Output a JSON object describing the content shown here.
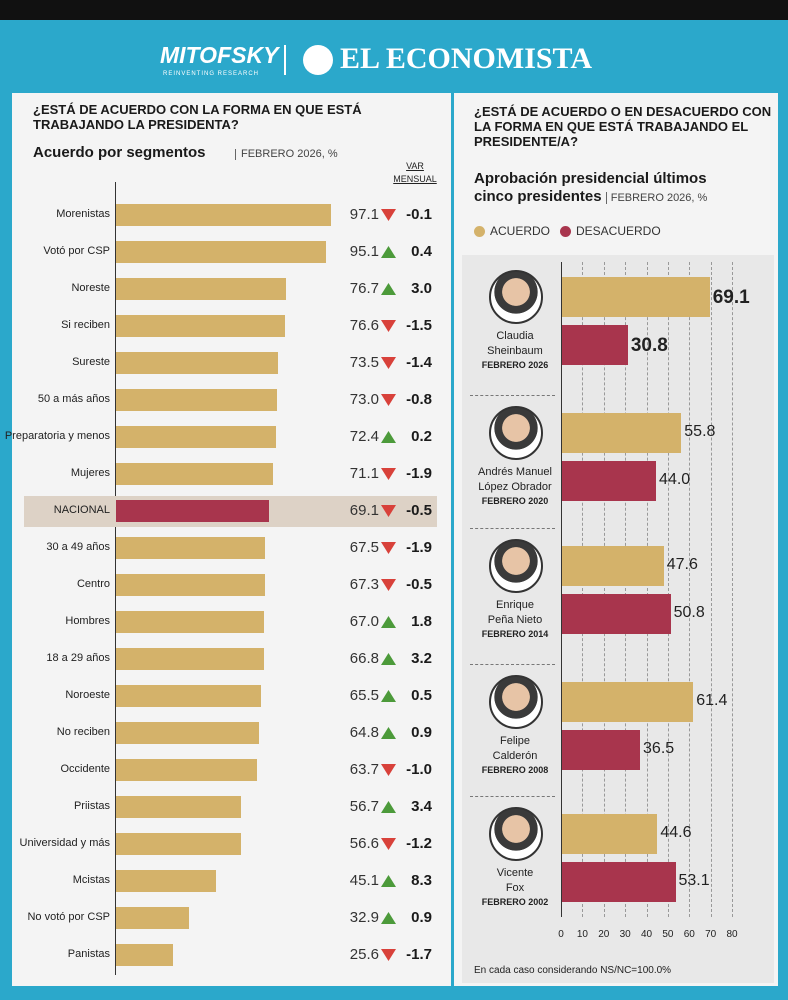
{
  "header": {
    "brand": "MITOFSKY",
    "tagline": "REINVENTING RESEARCH",
    "publisher": "EL ECONOMISTA"
  },
  "chart_data": [
    {
      "type": "bar",
      "orientation": "horizontal",
      "title": "¿ESTÁ DE ACUERDO CON LA FORMA EN QUE ESTÁ TRABAJANDO LA PRESIDENTA?",
      "subtitle": "Acuerdo por segmentos",
      "note": "FEBRERO 2026, %",
      "categories": [
        "Morenistas",
        "Votó por CSP",
        "Noreste",
        "Si reciben",
        "Sureste",
        "50 a más años",
        "Preparatoria y menos",
        "Mujeres",
        "NACIONAL",
        "30 a 49 años",
        "Centro",
        "Hombres",
        "18 a 29 años",
        "Noroeste",
        "No reciben",
        "Occidente",
        "Priistas",
        "Universidad y más",
        "Mcistas",
        "No votó por CSP",
        "Panistas"
      ],
      "values": [
        97.1,
        95.1,
        76.7,
        76.6,
        73.5,
        73.0,
        72.4,
        71.1,
        69.1,
        67.5,
        67.3,
        67.0,
        66.8,
        65.5,
        64.8,
        63.7,
        56.7,
        56.6,
        45.1,
        32.9,
        25.6
      ],
      "value_labels": [
        "97.1",
        "95.1",
        "76.7",
        "76.6",
        "73.5",
        "73.0",
        "72.4",
        "71.1",
        "69.1",
        "67.5",
        "67.3",
        "67.0",
        "66.8",
        "65.5",
        "64.8",
        "63.7",
        "56.7",
        "56.6",
        "45.1",
        "32.9",
        "25.6"
      ],
      "color": "#d4b26a",
      "highlight": 8,
      "highlight_color": "#a8354d",
      "highlight_band": "#ddd2c6",
      "change_title": "VAR\nMENSUAL",
      "changes": [
        -0.1,
        0.4,
        3.0,
        -1.5,
        -1.4,
        -0.8,
        0.2,
        -1.9,
        -0.5,
        -1.9,
        -0.5,
        1.8,
        3.2,
        0.5,
        0.9,
        -1.0,
        3.4,
        -1.2,
        8.3,
        0.9,
        -1.7
      ],
      "change_labels": [
        "-0.1",
        "0.4",
        "3.0",
        "-1.5",
        "-1.4",
        "-0.8",
        "0.2",
        "-1.9",
        "-0.5",
        "-1.9",
        "-0.5",
        "1.8",
        "3.2",
        "0.5",
        "0.9",
        "-1.0",
        "3.4",
        "-1.2",
        "8.3",
        "0.9",
        "-1.7"
      ],
      "up_color": "#4c9a3a",
      "down_color": "#d8413a"
    },
    {
      "type": "grouped-bar",
      "orientation": "horizontal",
      "title": "¿ESTÁ DE ACUERDO O EN DESACUERDO CON LA FORMA EN QUE ESTÁ TRABAJANDO EL PRESIDENTE/A?",
      "subtitle": "Aprobación presidencial últimos cinco presidentes",
      "note": "FEBRERO 2026, %",
      "categories": [
        "Claudia\nSheinbaum",
        "Andrés Manuel\nLópez Obrador",
        "Enrique\nPeña Nieto",
        "Felipe\nCalderón",
        "Vicente\nFox"
      ],
      "periods": [
        "FEBRERO 2026",
        "FEBRERO 2020",
        "FEBRERO 2014",
        "FEBRERO 2008",
        "FEBRERO 2002"
      ],
      "series": [
        {
          "name": "ACUERDO",
          "color": "#d4b26a",
          "values": [
            69.1,
            55.8,
            47.6,
            61.4,
            44.6
          ],
          "value_labels": [
            "69.1",
            "55.8",
            "47.6",
            "61.4",
            "44.6"
          ]
        },
        {
          "name": "DESACUERDO",
          "color": "#a8354d",
          "values": [
            30.8,
            44.0,
            50.8,
            36.5,
            53.1
          ],
          "value_labels": [
            "30.8",
            "44.0",
            "50.8",
            "36.5",
            "53.1"
          ]
        }
      ],
      "emphasis": 0,
      "xlim": [
        0,
        80
      ],
      "xticks": [
        0,
        10,
        20,
        30,
        40,
        50,
        60,
        70,
        80
      ],
      "grid": true,
      "legend": "top-left",
      "footnote": "En cada caso considerando NS/NC=100.0%"
    }
  ]
}
